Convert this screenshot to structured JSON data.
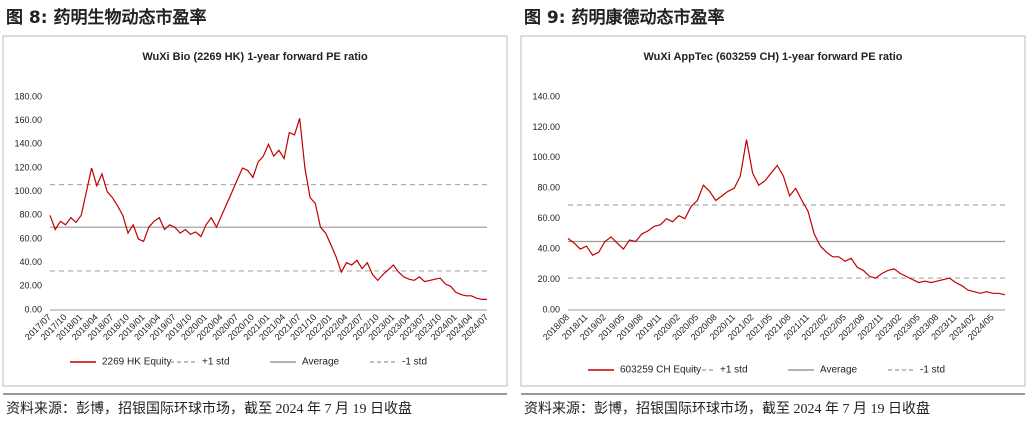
{
  "chart_data": [
    {
      "type": "line",
      "figure_title": "图 8: 药明生物动态市盈率",
      "title": "WuXi Bio (2269 HK) 1-year forward PE ratio",
      "source": "资料来源：彭博，招银国际环球市场，截至 2024 年 7 月 19 日收盘",
      "categories": [
        "2017/07",
        null,
        null,
        "2017/10",
        null,
        null,
        "2018/01",
        null,
        null,
        "2018/04",
        null,
        null,
        "2018/07",
        null,
        null,
        "2018/10",
        null,
        null,
        "2019/01",
        null,
        null,
        "2019/04",
        null,
        null,
        "2019/07",
        null,
        null,
        "2019/10",
        null,
        null,
        "2020/01",
        null,
        null,
        "2020/04",
        null,
        null,
        "2020/07",
        null,
        null,
        "2020/10",
        null,
        null,
        "2021/01",
        null,
        null,
        "2021/04",
        null,
        null,
        "2021/07",
        null,
        null,
        "2021/10",
        null,
        null,
        "2022/01",
        null,
        null,
        "2022/04",
        null,
        null,
        "2022/07",
        null,
        null,
        "2022/10",
        null,
        null,
        "2023/01",
        null,
        null,
        "2023/04",
        null,
        null,
        "2023/07",
        null,
        null,
        "2023/10",
        null,
        null,
        "2024/01",
        null,
        null,
        "2024/04",
        null,
        null,
        "2024/07"
      ],
      "series": [
        {
          "name": "2269 HK Equity",
          "color": "#c00000",
          "values": [
            80,
            68,
            75,
            72,
            78,
            74,
            80,
            100,
            120,
            105,
            115,
            100,
            95,
            88,
            80,
            65,
            72,
            60,
            58,
            70,
            75,
            78,
            68,
            72,
            70,
            65,
            68,
            64,
            66,
            62,
            72,
            78,
            70,
            80,
            90,
            100,
            110,
            120,
            118,
            112,
            125,
            130,
            140,
            130,
            135,
            128,
            150,
            148,
            162,
            120,
            95,
            90,
            70,
            65,
            55,
            45,
            32,
            40,
            38,
            42,
            35,
            40,
            30,
            25,
            30,
            34,
            38,
            32,
            28,
            26,
            25,
            28,
            24,
            25,
            26,
            27,
            22,
            20,
            15,
            13,
            12,
            12,
            10,
            9,
            9
          ]
        }
      ],
      "reference_lines": [
        {
          "name": "+1 std",
          "value": 106,
          "color": "#aaaaaa",
          "dash": true
        },
        {
          "name": "Average",
          "value": 70,
          "color": "#999999",
          "dash": false
        },
        {
          "name": "-1 std",
          "value": 33,
          "color": "#aaaaaa",
          "dash": true
        }
      ],
      "ylim": [
        0,
        180
      ],
      "yticks": [
        {
          "value": 0,
          "label": "0.00"
        },
        {
          "value": 20,
          "label": "20.00"
        },
        {
          "value": 40,
          "label": "40.00"
        },
        {
          "value": 60,
          "label": "60.00"
        },
        {
          "value": 80,
          "label": "80.00"
        },
        {
          "value": 100,
          "label": "100.00"
        },
        {
          "value": 120,
          "label": "120.00"
        },
        {
          "value": 140,
          "label": "140.00"
        },
        {
          "value": 160,
          "label": "160.00"
        },
        {
          "value": 180,
          "label": "180.00"
        }
      ]
    },
    {
      "type": "line",
      "figure_title": "图 9: 药明康德动态市盈率",
      "title": "WuXi AppTec (603259 CH)  1-year forward PE ratio",
      "source": "资料来源：彭博，招银国际环球市场，截至 2024 年 7 月 19 日收盘",
      "categories": [
        "2018/08",
        null,
        null,
        "2018/11",
        null,
        null,
        "2019/02",
        null,
        null,
        "2019/05",
        null,
        null,
        "2019/08",
        null,
        null,
        "2019/11",
        null,
        null,
        "2020/02",
        null,
        null,
        "2020/05",
        null,
        null,
        "2020/08",
        null,
        null,
        "2020/11",
        null,
        null,
        "2021/02",
        null,
        null,
        "2021/05",
        null,
        null,
        "2021/08",
        null,
        null,
        "2021/11",
        null,
        null,
        "2022/02",
        null,
        null,
        "2022/05",
        null,
        null,
        "2022/08",
        null,
        null,
        "2022/11",
        null,
        null,
        "2023/02",
        null,
        null,
        "2023/05",
        null,
        null,
        "2023/08",
        null,
        null,
        "2023/11",
        null,
        null,
        "2024/02",
        null,
        null,
        "2024/05",
        null,
        null
      ],
      "series": [
        {
          "name": "603259 CH Equity",
          "color": "#c00000",
          "values": [
            47,
            44,
            40,
            42,
            36,
            38,
            45,
            48,
            44,
            40,
            46,
            45,
            50,
            52,
            55,
            56,
            60,
            58,
            62,
            60,
            68,
            72,
            82,
            78,
            72,
            75,
            78,
            80,
            88,
            112,
            90,
            82,
            85,
            90,
            95,
            88,
            75,
            80,
            72,
            65,
            50,
            42,
            38,
            35,
            35,
            32,
            34,
            28,
            26,
            22,
            21,
            24,
            26,
            27,
            24,
            22,
            20,
            18,
            19,
            18,
            19,
            20,
            21,
            18,
            16,
            13,
            12,
            11,
            12,
            11,
            11,
            10
          ]
        }
      ],
      "reference_lines": [
        {
          "name": "+1 std",
          "value": 69,
          "color": "#aaaaaa",
          "dash": true
        },
        {
          "name": "Average",
          "value": 45,
          "color": "#999999",
          "dash": false
        },
        {
          "name": "-1 std",
          "value": 21,
          "color": "#aaaaaa",
          "dash": true
        }
      ],
      "ylim": [
        0,
        140
      ],
      "yticks": [
        {
          "value": 0,
          "label": "0.00"
        },
        {
          "value": 20,
          "label": "20.00"
        },
        {
          "value": 40,
          "label": "40.00"
        },
        {
          "value": 60,
          "label": "60.00"
        },
        {
          "value": 80,
          "label": "80.00"
        },
        {
          "value": 100,
          "label": "100.00"
        },
        {
          "value": 120,
          "label": "120.00"
        },
        {
          "value": 140,
          "label": "140.00"
        }
      ]
    }
  ]
}
